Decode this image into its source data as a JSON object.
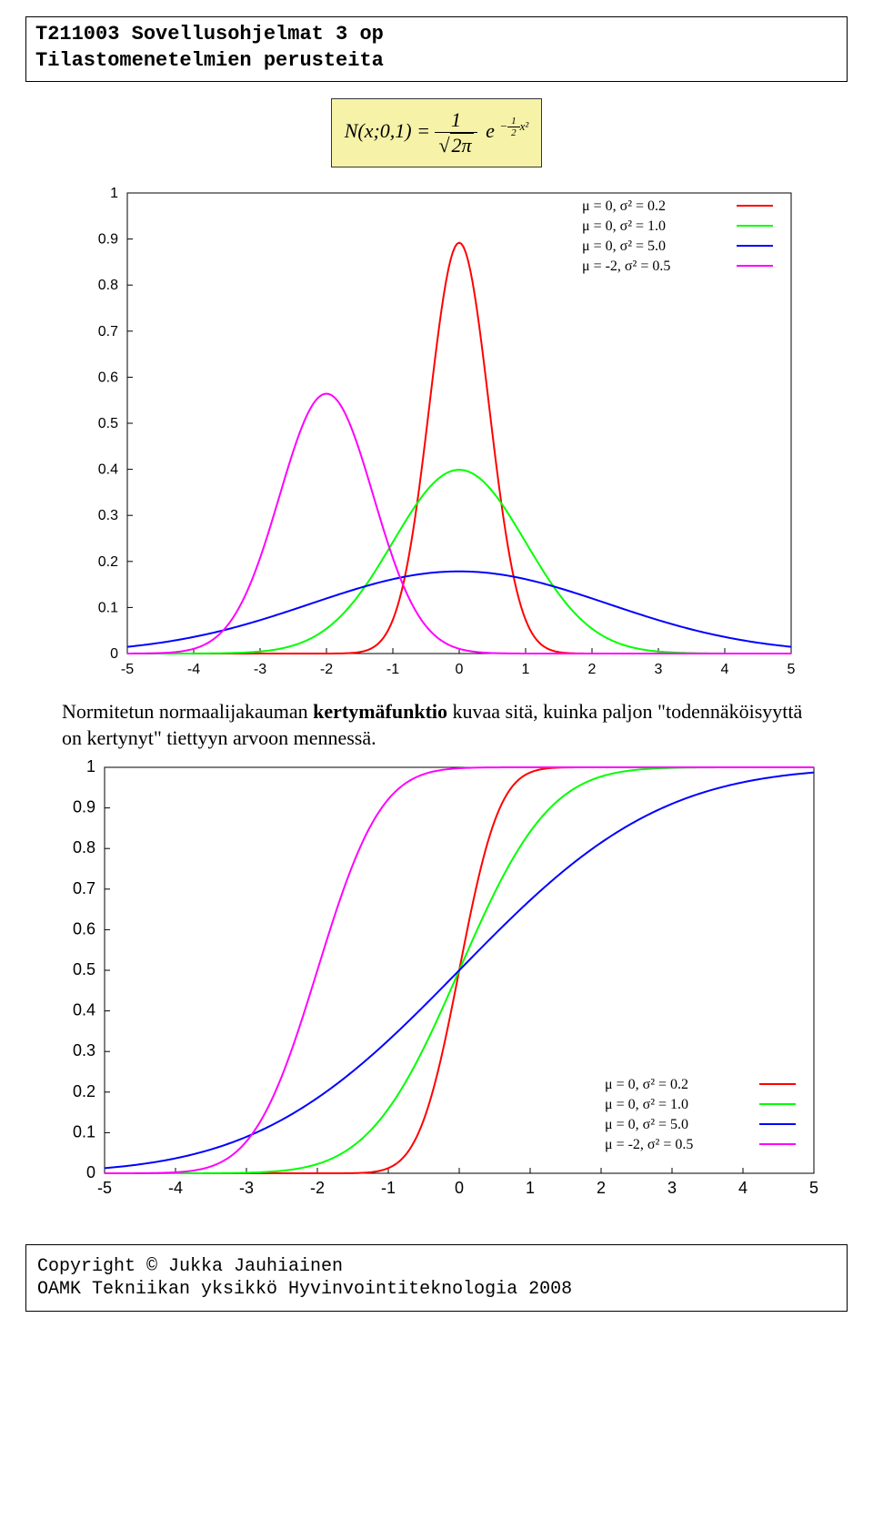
{
  "header": {
    "line1": "T211003 Sovellusohjelmat 3 op",
    "line2": "Tilastomenetelmien perusteita"
  },
  "formula": {
    "lhs": "N(x;0,1) =",
    "frac_num": "1",
    "frac_den_root": "2π",
    "e": "e",
    "exp_frac_num": "1",
    "exp_frac_den": "2",
    "exp_tail": "x²",
    "exp_sign": "−"
  },
  "pdf_chart": {
    "type": "line",
    "xlim": [
      -5,
      5
    ],
    "ylim": [
      0,
      1
    ],
    "xticks": [
      -5,
      -4,
      -3,
      -2,
      -1,
      0,
      1,
      2,
      3,
      4,
      5
    ],
    "yticks": [
      0,
      0.1,
      0.2,
      0.3,
      0.4,
      0.5,
      0.6,
      0.7,
      0.8,
      0.9,
      1
    ],
    "background_color": "#ffffff",
    "axis_color": "#000000",
    "axis_fontsize": 16,
    "line_width": 2,
    "series": [
      {
        "label": "μ = 0, σ² = 0.2",
        "color": "#ff0000",
        "mu": 0,
        "sigma2": 0.2
      },
      {
        "label": "μ = 0, σ² = 1.0",
        "color": "#00ff00",
        "mu": 0,
        "sigma2": 1.0
      },
      {
        "label": "μ = 0, σ² = 5.0",
        "color": "#0000ff",
        "mu": 0,
        "sigma2": 5.0
      },
      {
        "label": "μ = -2, σ² = 0.5",
        "color": "#ff00ff",
        "mu": -2,
        "sigma2": 0.5
      }
    ],
    "legend_position": "top-right",
    "legend_fontsize": 16
  },
  "body_text": "Normitetun normaalijakauman <b>kertymäfunktio</b> kuvaa sitä, kuinka paljon \"todennäköisyyttä on kertynyt\" tiettyyn arvoon mennessä.",
  "body_text_plain_1": "Normitetun normaalijakauman ",
  "body_text_bold": "kertymäfunktio",
  "body_text_plain_2": " kuvaa sitä, kuinka paljon \"todennäköisyyttä on kertynyt\" tiettyyn arvoon mennessä.",
  "cdf_chart": {
    "type": "line",
    "xlim": [
      -5,
      5
    ],
    "ylim": [
      0,
      1
    ],
    "xticks": [
      -5,
      -4,
      -3,
      -2,
      -1,
      0,
      1,
      2,
      3,
      4,
      5
    ],
    "yticks": [
      0,
      0.1,
      0.2,
      0.3,
      0.4,
      0.5,
      0.6,
      0.7,
      0.8,
      0.9,
      1
    ],
    "y_tick_labels": [
      "0",
      "0.1",
      "0.2",
      "0.3",
      "0.4",
      "0.5",
      "0.6",
      "0.7",
      "0.8",
      "0.9",
      "1"
    ],
    "background_color": "#ffffff",
    "axis_color": "#000000",
    "axis_fontsize": 18,
    "line_width": 2,
    "series": [
      {
        "label": "μ = 0, σ² = 0.2",
        "color": "#ff0000",
        "mu": 0,
        "sigma2": 0.2
      },
      {
        "label": "μ = 0, σ² = 1.0",
        "color": "#00ff00",
        "mu": 0,
        "sigma2": 1.0
      },
      {
        "label": "μ = 0, σ² = 5.0",
        "color": "#0000ff",
        "mu": 0,
        "sigma2": 5.0
      },
      {
        "label": "μ = -2, σ² = 0.5",
        "color": "#ff00ff",
        "mu": -2,
        "sigma2": 0.5
      }
    ],
    "legend_position": "bottom-right",
    "legend_fontsize": 16
  },
  "footer": {
    "line1": "Copyright © Jukka Jauhiainen",
    "line2": "OAMK Tekniikan yksikkö Hyvinvointiteknologia 2008"
  }
}
